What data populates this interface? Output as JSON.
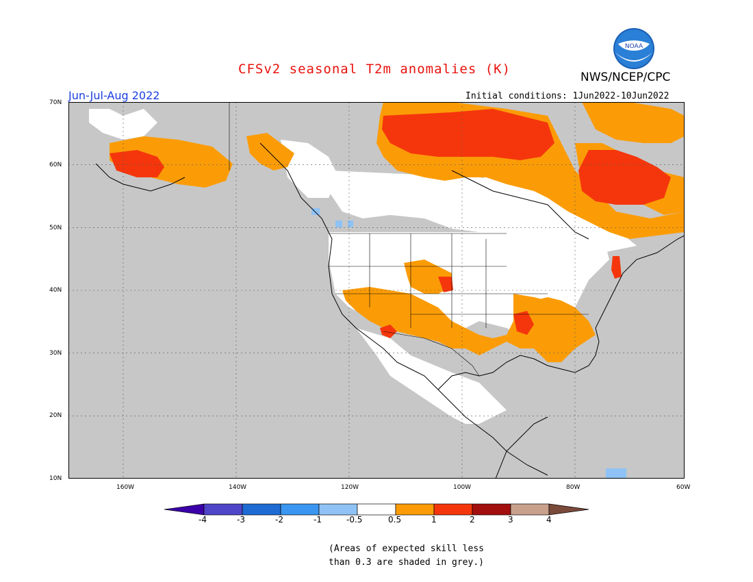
{
  "title": "CFSv2 seasonal T2m anomalies (K)",
  "agency": "NWS/NCEP/CPC",
  "logo_text": "NOAA",
  "season": "Jun-Jul-Aug 2022",
  "initial_conditions": "Initial conditions: 1Jun2022-10Jun2022",
  "lat_labels": [
    "70N",
    "60N",
    "50N",
    "40N",
    "30N",
    "20N",
    "10N"
  ],
  "lon_labels": [
    "160W",
    "140W",
    "120W",
    "100W",
    "80W",
    "60W"
  ],
  "legend": {
    "labels": [
      "-4",
      "-3",
      "-2",
      "-1",
      "-0.5",
      "0.5",
      "1",
      "2",
      "3",
      "4"
    ],
    "colors": [
      "#3b00a8",
      "#4e45c9",
      "#1f6bd4",
      "#3a96f0",
      "#8fc3f5",
      "#ffffff",
      "#fb9c07",
      "#f5360c",
      "#a30e0e",
      "#c8a08c",
      "#7a4a3a"
    ]
  },
  "footnote": "(Areas of expected skill less\nthan 0.3 are shaded in grey.)",
  "colors": {
    "title": "#e8120c",
    "season": "#1a3fe0",
    "skill_grey": "#c7c7c7",
    "ocean_grey": "#c7c7c7"
  }
}
